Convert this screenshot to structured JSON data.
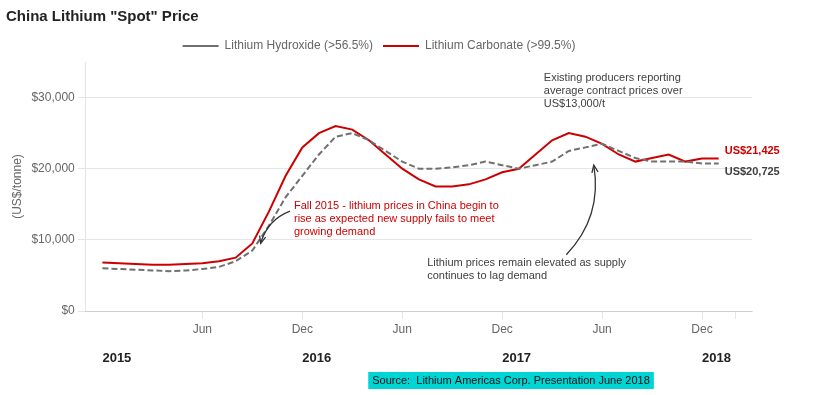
{
  "chart_data": {
    "type": "line",
    "title": "China Lithium \"Spot\" Price",
    "y_label": "(US$/tonne)",
    "x": [
      0,
      1,
      2,
      3,
      4,
      5,
      6,
      7,
      8,
      9,
      10,
      11,
      12,
      13,
      14,
      15,
      16,
      17,
      18,
      19,
      20,
      21,
      22,
      23,
      24,
      25,
      26,
      27,
      28,
      29,
      30,
      31,
      32,
      33,
      34,
      35,
      36,
      37
    ],
    "series": [
      {
        "name": "Lithium Hydroxide (>56.5%)",
        "color": "#707070",
        "line_style": "dashed",
        "values": [
          6000,
          5900,
          5800,
          5700,
          5600,
          5700,
          5900,
          6200,
          7000,
          8500,
          12000,
          16000,
          19000,
          22000,
          24500,
          25000,
          24000,
          22500,
          21000,
          20000,
          20000,
          20200,
          20500,
          21000,
          20500,
          20000,
          20500,
          21000,
          22500,
          23000,
          23500,
          22500,
          21500,
          21000,
          21000,
          21000,
          20725,
          20725
        ],
        "end_label": {
          "text": "US$20,725",
          "color": "#404040"
        }
      },
      {
        "name": "Lithium Carbonate (>99.5%)",
        "color": "#cc0000",
        "line_style": "solid",
        "values": [
          6800,
          6700,
          6600,
          6500,
          6500,
          6600,
          6700,
          7000,
          7500,
          9500,
          14000,
          19000,
          23000,
          25000,
          26000,
          25500,
          24000,
          22000,
          20000,
          18500,
          17500,
          17500,
          17800,
          18500,
          19500,
          20000,
          22000,
          24000,
          25000,
          24500,
          23500,
          22000,
          21000,
          21500,
          22000,
          21000,
          21425,
          21425
        ],
        "end_label": {
          "text": "US$21,425",
          "color": "#cc0000"
        }
      }
    ],
    "xlim": [
      -1,
      39
    ],
    "xticks": [
      {
        "value": 6,
        "label": "Jun"
      },
      {
        "value": 12,
        "label": "Dec"
      },
      {
        "value": 18,
        "label": "Jun"
      },
      {
        "value": 24,
        "label": "Dec"
      },
      {
        "value": 30,
        "label": "Jun"
      },
      {
        "value": 36,
        "label": "Dec"
      },
      {
        "value": 38,
        "label": null
      }
    ],
    "x2ticks": [
      {
        "value": 0,
        "label": "2015"
      },
      {
        "value": 12,
        "label": "2016"
      },
      {
        "value": 24,
        "label": "2017"
      },
      {
        "value": 36,
        "label": "2018"
      }
    ],
    "ylim": [
      0,
      35000
    ],
    "yticks": [
      {
        "value": 0,
        "label": "$0"
      },
      {
        "value": 10000,
        "label": "$10,000"
      },
      {
        "value": 20000,
        "label": "$20,000"
      },
      {
        "value": 30000,
        "label": "$30,000"
      }
    ],
    "grid": "y",
    "legend": "top",
    "annotations": [
      {
        "text": "Fall 2015 - lithium prices in China begin to\nrise as expected new supply fails to meet\ngrowing demand",
        "color": "#cc0000",
        "x": 9.5,
        "y": 9500
      },
      {
        "text": "Existing producers reporting\naverage contract prices over\nUS$13,000/t",
        "color": "#404040"
      },
      {
        "text": "Lithium prices remain elevated as supply\ncontinues to lag demand",
        "color": "#404040",
        "x": 29.5,
        "y": 20500
      }
    ],
    "source": "Source:  Lithium Americas Corp. Presentation June 2018",
    "source_color": "#00d4d4"
  }
}
